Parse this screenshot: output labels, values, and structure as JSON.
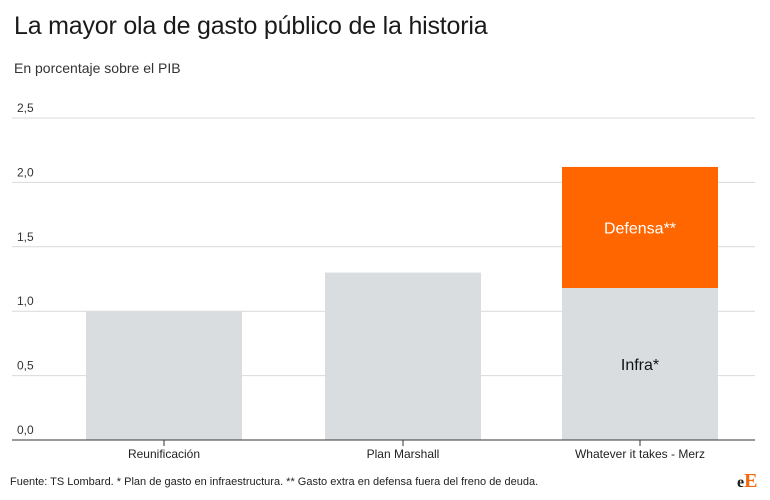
{
  "title": "La mayor ola de gasto público de la historia",
  "subtitle": "En porcentaje sobre el PIB",
  "footer": "Fuente: TS Lombard. * Plan de gasto en infraestructura. ** Gasto extra en defensa fuera del freno de deuda.",
  "logo": {
    "small": "e",
    "big": "E"
  },
  "colors": {
    "grey": "#dadde0",
    "orange": "#ff6600",
    "grid": "#d9d9d9",
    "axis": "#333333"
  },
  "chart_data": {
    "type": "bar",
    "stacked": true,
    "categories": [
      "Reunificación",
      "Plan Marshall",
      "Whatever it takes - Merz"
    ],
    "series": [
      {
        "name": "Infra*",
        "values": [
          1.0,
          1.3,
          1.18
        ],
        "color": "#dadde0"
      },
      {
        "name": "Defensa**",
        "values": [
          0,
          0,
          0.94
        ],
        "color": "#ff6600"
      }
    ],
    "segment_labels": [
      {
        "category": "Whatever it takes - Merz",
        "series": "Infra*",
        "text": "Infra*"
      },
      {
        "category": "Whatever it takes - Merz",
        "series": "Defensa**",
        "text": "Defensa**"
      }
    ],
    "yticks": [
      "0,0",
      "0,5",
      "1,0",
      "1,5",
      "2,0",
      "2,5"
    ],
    "ylim": [
      0,
      2.5
    ],
    "grid": true
  }
}
